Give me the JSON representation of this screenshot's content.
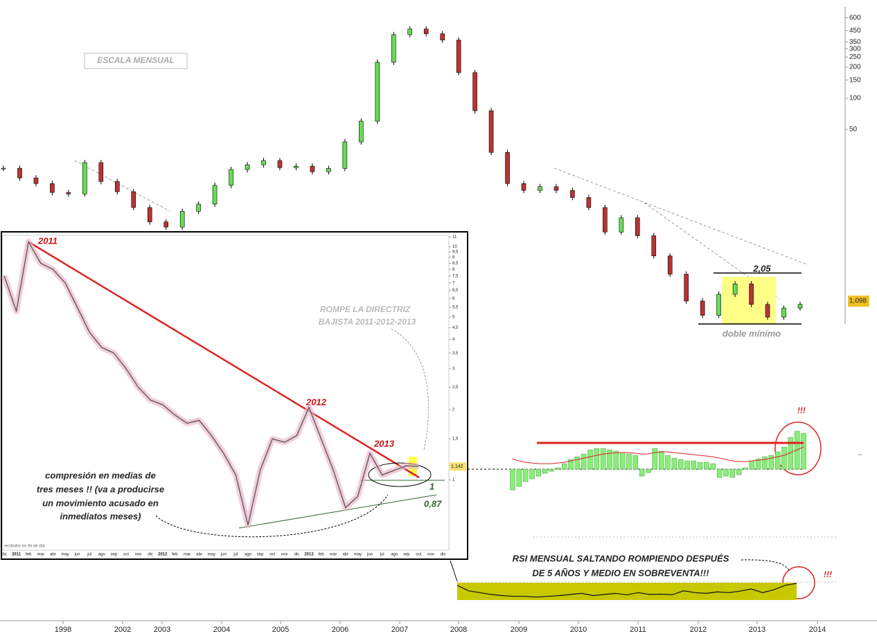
{
  "chart_data": [
    {
      "type": "candlestick",
      "values": [
        21.1,
        17,
        15.0,
        12.3,
        11.9,
        23.9,
        15.7,
        12.5,
        8.8,
        6.4,
        5.7,
        8.1,
        9.5,
        14.4,
        20.5,
        22.8,
        25.0,
        21.4,
        22.1,
        19.5,
        21,
        37.9,
        60.1,
        223,
        412,
        467,
        420,
        365,
        177,
        75.8,
        30,
        15.0,
        12.9,
        14.0,
        12.9,
        11.0,
        8.8,
        5.1,
        7.0,
        4.7,
        3.0,
        2.0,
        1.1,
        0.8,
        1.28,
        1.61,
        1.02,
        0.77,
        0.94,
        1.02
      ],
      "color_up": "#66dd55",
      "color_down": "#bb3333",
      "log_scale": true,
      "ylim": [
        0.55,
        763
      ],
      "yticks": [
        600,
        450,
        350,
        300,
        250,
        200,
        150,
        100,
        50
      ],
      "xticks": [
        1998,
        2002,
        2003,
        2004,
        2005,
        2006,
        2007,
        2008,
        2009,
        2010,
        2011,
        2012,
        2013,
        2014
      ],
      "last_label": {
        "value": 1.098,
        "label": "1,098"
      },
      "range_lines": [
        2.05,
        0.66
      ],
      "annotations": {
        "scale_label": "ESCALA MENSUAL",
        "high_label": "2,05",
        "low_label": "doble mínimo"
      }
    },
    {
      "type": "line",
      "categories": [
        "dic",
        "2011",
        "feb",
        "mar",
        "abr",
        "may",
        "jun",
        "jul",
        "ago",
        "sep",
        "oct",
        "nov",
        "dic",
        "2012",
        "feb",
        "mar",
        "abr",
        "may",
        "jun",
        "jul",
        "ago",
        "sep",
        "oct",
        "nov",
        "dic",
        "2013",
        "feb",
        "mar",
        "abr",
        "may",
        "jun",
        "jul",
        "ago",
        "sep",
        "oct",
        "nov",
        "dic"
      ],
      "values": [
        7.5,
        5.3,
        10.5,
        8.5,
        8.0,
        7.0,
        5.5,
        4.3,
        3.7,
        3.5,
        3.0,
        2.5,
        2.2,
        2.1,
        1.9,
        1.75,
        1.8,
        1.55,
        1.3,
        1.05,
        0.64,
        1.1,
        1.5,
        1.45,
        1.55,
        2.05,
        1.5,
        1.1,
        0.76,
        0.85,
        1.3,
        1.05,
        1.1,
        1.15,
        1.142,
        null,
        null
      ],
      "color": "#8b3a2a",
      "log_scale": true,
      "ylim": [
        0.51,
        11.2
      ],
      "yticks": [
        11,
        10,
        {
          "value": 9.5,
          "label": "9,5"
        },
        9,
        {
          "value": 8.5,
          "label": "8,5"
        },
        8,
        {
          "value": 7.5,
          "label": "7,5"
        },
        7,
        {
          "value": 6.5,
          "label": "6,5"
        },
        6,
        {
          "value": 5.5,
          "label": "5,5"
        },
        5,
        {
          "value": 4.5,
          "label": "4,5"
        },
        4,
        {
          "value": 3.5,
          "label": "3,5"
        },
        3,
        {
          "value": 2.5,
          "label": "2,5"
        },
        2,
        {
          "value": 1.5,
          "label": "1,5"
        },
        1
      ],
      "last_label": {
        "value": 1.142,
        "label": "1,142"
      },
      "annotations": {
        "peak_2011": "2011",
        "peak_2012": "2012",
        "peak_2013": "2013",
        "break_note": [
          "ROMPE LA DIRECTRIZ",
          "BAJISTA 2011-2012-2013"
        ],
        "compression_note": [
          "compresión en medias de",
          "tres meses !! (va a producirse",
          "un movimiento acusado en",
          "inmediatos meses)"
        ],
        "support_1": "1",
        "support_2": "0,87",
        "footer": "recibidos en fin de día"
      }
    },
    {
      "type": "bar",
      "values": [
        -30,
        -25,
        -18,
        -14,
        -10,
        -6,
        -3,
        2,
        8,
        14,
        18,
        22,
        28,
        30,
        30,
        28,
        26,
        24,
        22,
        20,
        -10,
        -5,
        30,
        26,
        20,
        16,
        14,
        12,
        12,
        10,
        10,
        8,
        -12,
        -10,
        -12,
        -8,
        2,
        12,
        15,
        18,
        20,
        25,
        32,
        46,
        55,
        52
      ],
      "signal": [
        15,
        12,
        10,
        9,
        8,
        8,
        8,
        9,
        10,
        12,
        14,
        16,
        18,
        20,
        22,
        23,
        24,
        24,
        24,
        23,
        22,
        22,
        24,
        25,
        25,
        24,
        23,
        22,
        21,
        20,
        19,
        18,
        16,
        14,
        12,
        11,
        11,
        12,
        13,
        14,
        16,
        18,
        20,
        24,
        28,
        32
      ],
      "color": "#88ee77",
      "signal_color": "#dd2222",
      "ylim": [
        -40,
        70
      ],
      "level": 38,
      "annotations": {
        "alert": "!!!"
      }
    },
    {
      "type": "line",
      "values": [
        40,
        25,
        20,
        15,
        12,
        10,
        10,
        8,
        10,
        12,
        15,
        18,
        12,
        15,
        18,
        14,
        20,
        15,
        16,
        14,
        25,
        20,
        18,
        22,
        20,
        24,
        30,
        20,
        28,
        40,
        45
      ],
      "color": "#111111",
      "band_color": "#c8c800",
      "ylim": [
        0,
        60
      ],
      "annotations": {
        "note": [
          "RSI MENSUAL SALTANDO ROMPIENDO DESPUÉS",
          "DE 5 AÑOS Y MEDIO EN SOBREVENTA!!!"
        ],
        "alert": "!!!"
      }
    }
  ]
}
